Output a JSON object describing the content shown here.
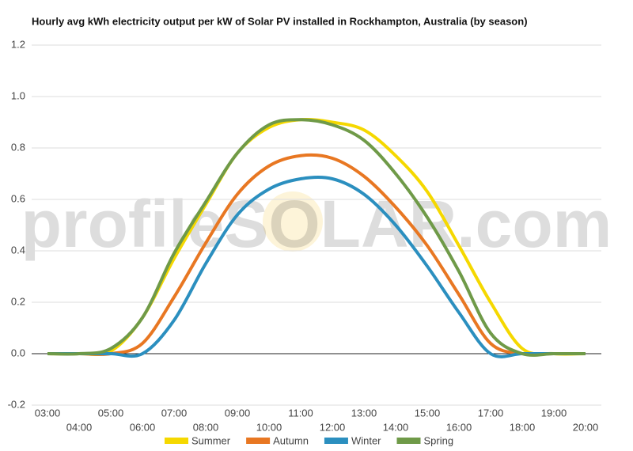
{
  "chart_data": {
    "type": "line",
    "title": "Hourly avg kWh electricity output per kW of Solar PV installed in Rockhampton, Australia (by season)",
    "watermark": "profileSOLAR.com",
    "categories": [
      "03:00",
      "04:00",
      "05:00",
      "06:00",
      "07:00",
      "08:00",
      "09:00",
      "10:00",
      "11:00",
      "12:00",
      "13:00",
      "14:00",
      "15:00",
      "16:00",
      "17:00",
      "18:00",
      "19:00",
      "20:00"
    ],
    "series": [
      {
        "name": "Summer",
        "color": "#f5d800",
        "values": [
          0,
          0,
          0.01,
          0.14,
          0.37,
          0.58,
          0.78,
          0.88,
          0.91,
          0.9,
          0.87,
          0.77,
          0.63,
          0.42,
          0.2,
          0.02,
          0,
          0
        ]
      },
      {
        "name": "Autumn",
        "color": "#e87722",
        "values": [
          0,
          0,
          0,
          0.04,
          0.22,
          0.43,
          0.62,
          0.73,
          0.77,
          0.76,
          0.69,
          0.57,
          0.42,
          0.23,
          0.04,
          0,
          0,
          0
        ]
      },
      {
        "name": "Winter",
        "color": "#2b8fbf",
        "values": [
          0,
          0,
          0,
          0,
          0.13,
          0.35,
          0.54,
          0.64,
          0.68,
          0.68,
          0.62,
          0.5,
          0.34,
          0.16,
          0,
          0,
          0,
          0
        ]
      },
      {
        "name": "Spring",
        "color": "#6f9a48",
        "values": [
          0,
          0,
          0.02,
          0.14,
          0.39,
          0.59,
          0.78,
          0.89,
          0.91,
          0.89,
          0.83,
          0.7,
          0.53,
          0.32,
          0.08,
          0,
          0,
          0
        ]
      }
    ],
    "ylim": [
      -0.2,
      1.2
    ],
    "yticks": [
      -0.2,
      {
        "value": 0,
        "label": "0.0"
      },
      0.2,
      0.4,
      0.6,
      0.8,
      {
        "value": 1,
        "label": "1.0"
      },
      1.2
    ],
    "grid": true,
    "legend": "bottom"
  }
}
